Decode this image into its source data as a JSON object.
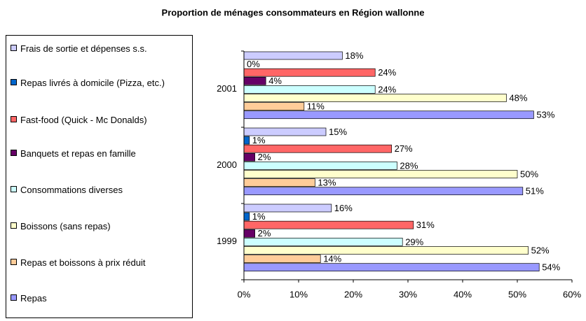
{
  "chart_data": {
    "type": "hbar",
    "title": "Proportion de ménages consommateurs en Région wallonne",
    "categories": [
      "1999",
      "2000",
      "2001"
    ],
    "series": [
      {
        "name": "Frais de sortie et dépenses s.s.",
        "color": "#ccccff",
        "values": [
          16,
          15,
          18
        ],
        "value_labels": [
          "16%",
          "15%",
          "18%"
        ]
      },
      {
        "name": "Repas livrés à domicile (Pizza, etc.)",
        "color": "#0066cc",
        "values": [
          1,
          1,
          0
        ],
        "value_labels": [
          "1%",
          "1%",
          "0%"
        ]
      },
      {
        "name": "Fast-food (Quick - Mc Donalds)",
        "color": "#ff6666",
        "values": [
          31,
          27,
          24
        ],
        "value_labels": [
          "31%",
          "27%",
          "24%"
        ]
      },
      {
        "name": "Banquets et repas en famille",
        "color": "#660066",
        "values": [
          2,
          2,
          4
        ],
        "value_labels": [
          "2%",
          "2%",
          "4%"
        ]
      },
      {
        "name": "Consommations diverses",
        "color": "#ccffff",
        "values": [
          29,
          28,
          24
        ],
        "value_labels": [
          "29%",
          "28%",
          "24%"
        ]
      },
      {
        "name": "Boissons (sans repas)",
        "color": "#ffffcc",
        "values": [
          52,
          50,
          48
        ],
        "value_labels": [
          "52%",
          "50%",
          "48%"
        ]
      },
      {
        "name": "Repas et boissons à prix réduit",
        "color": "#ffcc99",
        "values": [
          14,
          13,
          11
        ],
        "value_labels": [
          "14%",
          "13%",
          "11%"
        ]
      },
      {
        "name": "Repas",
        "color": "#9999ff",
        "values": [
          54,
          51,
          53
        ],
        "value_labels": [
          "54%",
          "51%",
          "53%"
        ]
      }
    ],
    "xlim": [
      0,
      60
    ],
    "xticks": [
      {
        "value": 0,
        "label": "0%"
      },
      {
        "value": 10,
        "label": "10%"
      },
      {
        "value": 20,
        "label": "20%"
      },
      {
        "value": 30,
        "label": "30%"
      },
      {
        "value": 40,
        "label": "40%"
      },
      {
        "value": 50,
        "label": "50%"
      },
      {
        "value": 60,
        "label": "60%"
      }
    ]
  }
}
